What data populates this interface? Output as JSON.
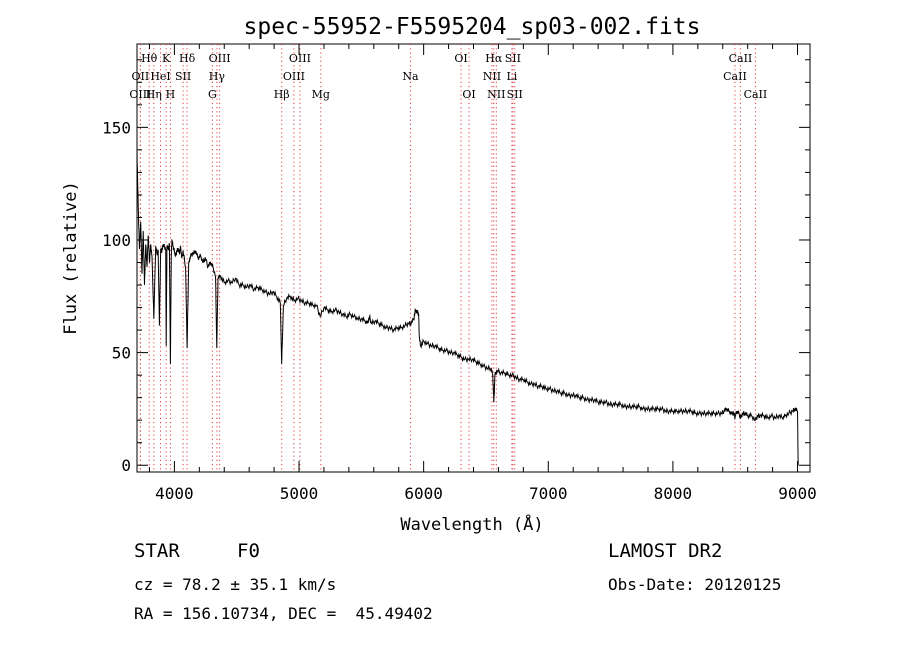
{
  "chart_data": {
    "type": "line",
    "title": "spec-55952-F5595204_sp03-002.fits",
    "xlabel": "Wavelength (Å)",
    "ylabel": "Flux (relative)",
    "xlim": [
      3700,
      9100
    ],
    "ylim": [
      -3,
      187
    ],
    "x_ticks": [
      4000,
      5000,
      6000,
      7000,
      8000,
      9000
    ],
    "y_ticks": [
      0,
      50,
      100,
      150
    ],
    "line_color": "#000000",
    "marker_color": "#e04040",
    "spectrum": [
      [
        3700,
        140
      ],
      [
        3710,
        115
      ],
      [
        3720,
        96
      ],
      [
        3730,
        108
      ],
      [
        3740,
        85
      ],
      [
        3750,
        104
      ],
      [
        3760,
        80
      ],
      [
        3770,
        98
      ],
      [
        3780,
        88
      ],
      [
        3790,
        102
      ],
      [
        3800,
        90
      ],
      [
        3810,
        98
      ],
      [
        3820,
        93
      ],
      [
        3835,
        65
      ],
      [
        3850,
        97
      ],
      [
        3860,
        94
      ],
      [
        3870,
        95
      ],
      [
        3880,
        62
      ],
      [
        3890,
        96
      ],
      [
        3900,
        95
      ],
      [
        3910,
        98
      ],
      [
        3920,
        97
      ],
      [
        3930,
        96
      ],
      [
        3934,
        53
      ],
      [
        3940,
        97
      ],
      [
        3950,
        96
      ],
      [
        3960,
        98
      ],
      [
        3968,
        45
      ],
      [
        3975,
        93
      ],
      [
        3980,
        100
      ],
      [
        3990,
        97
      ],
      [
        4000,
        95
      ],
      [
        4010,
        93
      ],
      [
        4020,
        95
      ],
      [
        4030,
        96
      ],
      [
        4040,
        94
      ],
      [
        4050,
        97
      ],
      [
        4060,
        92
      ],
      [
        4070,
        95
      ],
      [
        4090,
        88
      ],
      [
        4102,
        52
      ],
      [
        4115,
        90
      ],
      [
        4130,
        93
      ],
      [
        4150,
        94
      ],
      [
        4170,
        95
      ],
      [
        4190,
        92
      ],
      [
        4210,
        93
      ],
      [
        4230,
        90
      ],
      [
        4250,
        92
      ],
      [
        4270,
        88
      ],
      [
        4290,
        90
      ],
      [
        4310,
        88
      ],
      [
        4330,
        84
      ],
      [
        4340,
        52
      ],
      [
        4350,
        83
      ],
      [
        4370,
        84
      ],
      [
        4400,
        81
      ],
      [
        4430,
        82
      ],
      [
        4460,
        81
      ],
      [
        4490,
        83
      ],
      [
        4520,
        80
      ],
      [
        4550,
        80
      ],
      [
        4580,
        79
      ],
      [
        4610,
        80
      ],
      [
        4640,
        78
      ],
      [
        4670,
        79
      ],
      [
        4700,
        78
      ],
      [
        4730,
        77
      ],
      [
        4760,
        76
      ],
      [
        4790,
        77
      ],
      [
        4820,
        75
      ],
      [
        4850,
        72
      ],
      [
        4861,
        45
      ],
      [
        4875,
        71
      ],
      [
        4900,
        74
      ],
      [
        4930,
        75
      ],
      [
        4960,
        73
      ],
      [
        4990,
        74
      ],
      [
        5020,
        73
      ],
      [
        5050,
        72
      ],
      [
        5080,
        72
      ],
      [
        5110,
        71
      ],
      [
        5140,
        71
      ],
      [
        5170,
        66
      ],
      [
        5200,
        70
      ],
      [
        5230,
        69
      ],
      [
        5260,
        68
      ],
      [
        5290,
        69
      ],
      [
        5320,
        68
      ],
      [
        5350,
        67
      ],
      [
        5380,
        66
      ],
      [
        5410,
        67
      ],
      [
        5440,
        66
      ],
      [
        5470,
        65
      ],
      [
        5500,
        65
      ],
      [
        5530,
        64
      ],
      [
        5550,
        63
      ],
      [
        5565,
        66
      ],
      [
        5580,
        63
      ],
      [
        5610,
        64
      ],
      [
        5640,
        63
      ],
      [
        5670,
        62
      ],
      [
        5700,
        61
      ],
      [
        5730,
        61
      ],
      [
        5760,
        60
      ],
      [
        5790,
        61
      ],
      [
        5820,
        61
      ],
      [
        5850,
        62
      ],
      [
        5880,
        63
      ],
      [
        5900,
        63
      ],
      [
        5920,
        65
      ],
      [
        5935,
        69
      ],
      [
        5950,
        68
      ],
      [
        5960,
        67
      ],
      [
        5965,
        57
      ],
      [
        5975,
        53
      ],
      [
        6000,
        55
      ],
      [
        6030,
        54
      ],
      [
        6060,
        53
      ],
      [
        6090,
        53
      ],
      [
        6120,
        52
      ],
      [
        6150,
        51
      ],
      [
        6180,
        51
      ],
      [
        6210,
        50
      ],
      [
        6240,
        50
      ],
      [
        6270,
        49
      ],
      [
        6300,
        48
      ],
      [
        6330,
        47
      ],
      [
        6360,
        47
      ],
      [
        6390,
        47
      ],
      [
        6420,
        46
      ],
      [
        6450,
        45
      ],
      [
        6480,
        44
      ],
      [
        6510,
        43
      ],
      [
        6540,
        43
      ],
      [
        6555,
        40
      ],
      [
        6563,
        28
      ],
      [
        6572,
        40
      ],
      [
        6590,
        42
      ],
      [
        6620,
        41
      ],
      [
        6650,
        41
      ],
      [
        6680,
        40
      ],
      [
        6710,
        40
      ],
      [
        6740,
        39
      ],
      [
        6770,
        38
      ],
      [
        6800,
        38
      ],
      [
        6830,
        37
      ],
      [
        6860,
        36
      ],
      [
        6890,
        36
      ],
      [
        6920,
        35
      ],
      [
        6950,
        35
      ],
      [
        6980,
        34
      ],
      [
        7010,
        34
      ],
      [
        7040,
        33
      ],
      [
        7070,
        33
      ],
      [
        7100,
        32
      ],
      [
        7130,
        32
      ],
      [
        7160,
        31
      ],
      [
        7190,
        31
      ],
      [
        7220,
        31
      ],
      [
        7250,
        30
      ],
      [
        7280,
        30
      ],
      [
        7310,
        29
      ],
      [
        7340,
        29
      ],
      [
        7370,
        29
      ],
      [
        7400,
        28
      ],
      [
        7430,
        28
      ],
      [
        7460,
        28
      ],
      [
        7490,
        27
      ],
      [
        7520,
        27
      ],
      [
        7550,
        27
      ],
      [
        7580,
        27
      ],
      [
        7610,
        26
      ],
      [
        7640,
        26
      ],
      [
        7670,
        26
      ],
      [
        7700,
        26
      ],
      [
        7730,
        26
      ],
      [
        7760,
        25
      ],
      [
        7790,
        25
      ],
      [
        7820,
        25
      ],
      [
        7850,
        25
      ],
      [
        7880,
        25
      ],
      [
        7910,
        25
      ],
      [
        7940,
        24
      ],
      [
        7970,
        24
      ],
      [
        8000,
        24
      ],
      [
        8030,
        24
      ],
      [
        8060,
        24
      ],
      [
        8090,
        24
      ],
      [
        8120,
        24
      ],
      [
        8150,
        24
      ],
      [
        8180,
        23
      ],
      [
        8210,
        23
      ],
      [
        8240,
        23
      ],
      [
        8270,
        23
      ],
      [
        8300,
        23
      ],
      [
        8330,
        23
      ],
      [
        8360,
        23
      ],
      [
        8390,
        23
      ],
      [
        8410,
        24
      ],
      [
        8430,
        25
      ],
      [
        8450,
        24
      ],
      [
        8470,
        23
      ],
      [
        8490,
        23
      ],
      [
        8498,
        21
      ],
      [
        8510,
        24
      ],
      [
        8530,
        23
      ],
      [
        8542,
        21
      ],
      [
        8560,
        23
      ],
      [
        8580,
        23
      ],
      [
        8600,
        22
      ],
      [
        8630,
        22
      ],
      [
        8662,
        20
      ],
      [
        8680,
        22
      ],
      [
        8700,
        22
      ],
      [
        8730,
        22
      ],
      [
        8760,
        21
      ],
      [
        8790,
        22
      ],
      [
        8820,
        21
      ],
      [
        8850,
        22
      ],
      [
        8880,
        21
      ],
      [
        8900,
        22
      ],
      [
        8930,
        23
      ],
      [
        8960,
        24
      ],
      [
        8980,
        25
      ],
      [
        9000,
        24
      ],
      [
        9005,
        0
      ]
    ],
    "line_markers": [
      {
        "label": "Hθ",
        "x": 3798,
        "row": 1
      },
      {
        "label": "OII",
        "x": 3727,
        "row": 2
      },
      {
        "label": "OIII",
        "x": 3727,
        "row": 3
      },
      {
        "label": "K",
        "x": 3934,
        "row": 1
      },
      {
        "label": "HeI",
        "x": 3889,
        "row": 2
      },
      {
        "label": "Hη",
        "x": 3835,
        "row": 3
      },
      {
        "label": "SII",
        "x": 4070,
        "row": 2
      },
      {
        "label": "H",
        "x": 3968,
        "row": 3
      },
      {
        "label": "Hδ",
        "x": 4102,
        "row": 1
      },
      {
        "label": "OIII",
        "x": 4363,
        "row": 1
      },
      {
        "label": "Hγ",
        "x": 4341,
        "row": 2
      },
      {
        "label": "G",
        "x": 4305,
        "row": 3
      },
      {
        "label": "OIII",
        "x": 5007,
        "row": 1
      },
      {
        "label": "OIII",
        "x": 4959,
        "row": 2
      },
      {
        "label": "Hβ",
        "x": 4861,
        "row": 3
      },
      {
        "label": "Mg",
        "x": 5175,
        "row": 3
      },
      {
        "label": "Na",
        "x": 5894,
        "row": 2
      },
      {
        "label": "OI",
        "x": 6300,
        "row": 1
      },
      {
        "label": "OI",
        "x": 6364,
        "row": 3
      },
      {
        "label": "Hα",
        "x": 6563,
        "row": 1
      },
      {
        "label": "SII",
        "x": 6716,
        "row": 1
      },
      {
        "label": "NII",
        "x": 6548,
        "row": 2
      },
      {
        "label": "Li",
        "x": 6708,
        "row": 2
      },
      {
        "label": "NII",
        "x": 6583,
        "row": 3
      },
      {
        "label": "SII",
        "x": 6731,
        "row": 3
      },
      {
        "label": "CaII",
        "x": 8542,
        "row": 1
      },
      {
        "label": "CaII",
        "x": 8498,
        "row": 2
      },
      {
        "label": "CaII",
        "x": 8662,
        "row": 3
      }
    ]
  },
  "footer": {
    "object_class": "STAR",
    "subclass": "F0",
    "survey": "LAMOST DR2",
    "cz_text": "cz = 78.2 ± 35.1 km/s",
    "obs_date_text": "Obs-Date: 20120125",
    "coords_text": "RA = 156.10734, DEC =  45.49402"
  }
}
